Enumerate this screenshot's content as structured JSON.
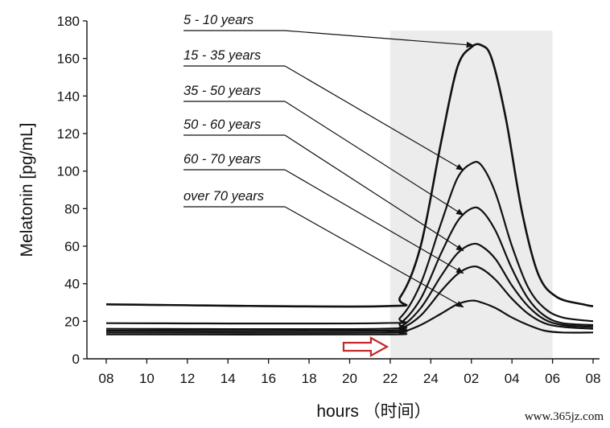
{
  "chart_data": {
    "type": "line",
    "xlabel": "hours （时间）",
    "ylabel": "Melatonin [pg/mL]",
    "ylim": [
      0,
      180
    ],
    "yticks": [
      0,
      20,
      40,
      60,
      80,
      100,
      120,
      140,
      160,
      180
    ],
    "x_hours": [
      8,
      10,
      12,
      14,
      16,
      18,
      20,
      22,
      24,
      26,
      28,
      30,
      32
    ],
    "xtick_labels": [
      "08",
      "10",
      "12",
      "14",
      "16",
      "18",
      "20",
      "22",
      "24",
      "02",
      "04",
      "06",
      "08"
    ],
    "night_band": {
      "from_hour": 22,
      "to_hour": 30,
      "color": "#dcdcdc"
    },
    "night_marker_color": "#c62828",
    "grid": false,
    "series": [
      {
        "name": "5 - 10 years",
        "baseline": 29,
        "peak": 167,
        "tail": 28,
        "points": [
          [
            8,
            29
          ],
          [
            21.5,
            28
          ],
          [
            22.5,
            33
          ],
          [
            23.5,
            60
          ],
          [
            24.5,
            115
          ],
          [
            25.3,
            155
          ],
          [
            26,
            166
          ],
          [
            26.5,
            167
          ],
          [
            27,
            160
          ],
          [
            27.7,
            128
          ],
          [
            28.5,
            78
          ],
          [
            29.3,
            45
          ],
          [
            30.2,
            33
          ],
          [
            31.5,
            29
          ],
          [
            32,
            28
          ]
        ]
      },
      {
        "name": "15 - 35 years",
        "baseline": 19,
        "peak": 104,
        "tail": 20,
        "points": [
          [
            8,
            19
          ],
          [
            21.5,
            19
          ],
          [
            22.5,
            22
          ],
          [
            23.5,
            40
          ],
          [
            24.5,
            72
          ],
          [
            25.3,
            96
          ],
          [
            26,
            104
          ],
          [
            26.5,
            103
          ],
          [
            27.2,
            88
          ],
          [
            28,
            60
          ],
          [
            28.8,
            38
          ],
          [
            29.6,
            27
          ],
          [
            30.5,
            22
          ],
          [
            32,
            20
          ]
        ]
      },
      {
        "name": "35 - 50 years",
        "baseline": 16,
        "peak": 80,
        "tail": 18,
        "points": [
          [
            8,
            16
          ],
          [
            21.5,
            16
          ],
          [
            22.5,
            19
          ],
          [
            23.5,
            32
          ],
          [
            24.5,
            56
          ],
          [
            25.3,
            73
          ],
          [
            26,
            80
          ],
          [
            26.5,
            79
          ],
          [
            27.2,
            68
          ],
          [
            28,
            48
          ],
          [
            28.8,
            32
          ],
          [
            29.6,
            23
          ],
          [
            30.5,
            19
          ],
          [
            32,
            18
          ]
        ]
      },
      {
        "name": "50 - 60 years",
        "baseline": 15,
        "peak": 61,
        "tail": 17,
        "points": [
          [
            8,
            15
          ],
          [
            21.5,
            15
          ],
          [
            22.5,
            17
          ],
          [
            23.5,
            27
          ],
          [
            24.5,
            44
          ],
          [
            25.3,
            56
          ],
          [
            26,
            61
          ],
          [
            26.5,
            60
          ],
          [
            27.2,
            53
          ],
          [
            28,
            39
          ],
          [
            28.8,
            28
          ],
          [
            29.6,
            21
          ],
          [
            30.5,
            18
          ],
          [
            32,
            17
          ]
        ]
      },
      {
        "name": "60 - 70 years",
        "baseline": 14,
        "peak": 49,
        "tail": 16,
        "points": [
          [
            8,
            14
          ],
          [
            21.5,
            14
          ],
          [
            22.5,
            16
          ],
          [
            23.5,
            23
          ],
          [
            24.5,
            36
          ],
          [
            25.3,
            45
          ],
          [
            26,
            49
          ],
          [
            26.5,
            48
          ],
          [
            27.2,
            42
          ],
          [
            28,
            32
          ],
          [
            28.8,
            24
          ],
          [
            29.6,
            19
          ],
          [
            30.5,
            17
          ],
          [
            32,
            16
          ]
        ]
      },
      {
        "name": "over 70 years",
        "baseline": 13,
        "peak": 31,
        "tail": 14,
        "points": [
          [
            8,
            13
          ],
          [
            21.5,
            13
          ],
          [
            22.5,
            14
          ],
          [
            23.5,
            18
          ],
          [
            24.5,
            24
          ],
          [
            25.3,
            29
          ],
          [
            26,
            31
          ],
          [
            26.5,
            30
          ],
          [
            27.2,
            27
          ],
          [
            28,
            22
          ],
          [
            28.8,
            18
          ],
          [
            29.6,
            15
          ],
          [
            30.5,
            14
          ],
          [
            32,
            14
          ]
        ]
      }
    ]
  },
  "watermark": "www.365jz.com"
}
